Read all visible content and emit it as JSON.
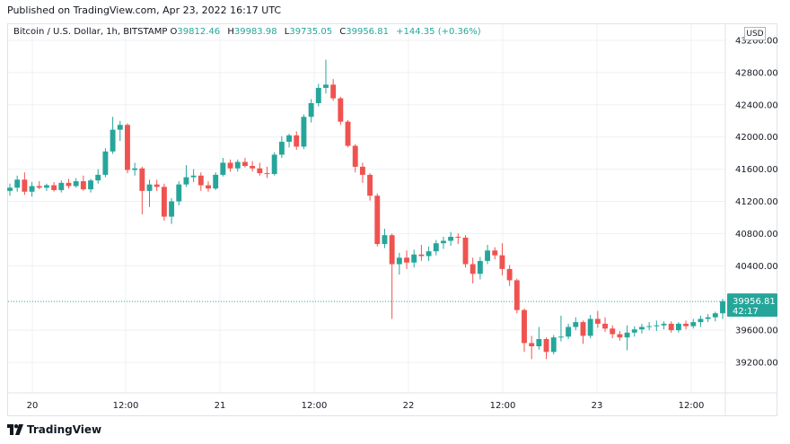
{
  "header": {
    "published": "Published on TradingView.com, Apr 23, 2022 16:17 UTC"
  },
  "legend": {
    "symbol": "Bitcoin / U.S. Dollar, 1h, BITSTAMP",
    "open_label": "O",
    "open": "39812.46",
    "high_label": "H",
    "high": "39983.98",
    "low_label": "L",
    "low": "39735.05",
    "close_label": "C",
    "close": "39956.81",
    "change": "+144.35 (+0.36%)"
  },
  "currency_button": "USD",
  "price_label": {
    "price": "39956.81",
    "countdown": "42:17"
  },
  "footer": {
    "logo_text": "TradingView"
  },
  "colors": {
    "up": "#26a69a",
    "down": "#ef5350",
    "grid": "#eef0f3",
    "axis_text": "#131722",
    "last_price_line": "#26a69a"
  },
  "chart_data": {
    "type": "candlestick",
    "timeframe": "1h",
    "x_ticks": [
      "20",
      "12:00",
      "21",
      "12:00",
      "22",
      "12:00",
      "23",
      "12:00"
    ],
    "y_ticks": [
      "43200.00",
      "42800.00",
      "42400.00",
      "42000.00",
      "41600.00",
      "41200.00",
      "40800.00",
      "40400.00",
      "39600.00",
      "39200.00"
    ],
    "ylim": [
      39000,
      43300
    ],
    "last_price": 39956.81,
    "candles": [
      {
        "o": 41330,
        "h": 41420,
        "l": 41270,
        "c": 41370
      },
      {
        "o": 41370,
        "h": 41520,
        "l": 41320,
        "c": 41470
      },
      {
        "o": 41470,
        "h": 41560,
        "l": 41280,
        "c": 41320
      },
      {
        "o": 41320,
        "h": 41440,
        "l": 41260,
        "c": 41390
      },
      {
        "o": 41390,
        "h": 41450,
        "l": 41350,
        "c": 41370
      },
      {
        "o": 41370,
        "h": 41420,
        "l": 41330,
        "c": 41400
      },
      {
        "o": 41400,
        "h": 41440,
        "l": 41320,
        "c": 41340
      },
      {
        "o": 41340,
        "h": 41460,
        "l": 41310,
        "c": 41430
      },
      {
        "o": 41430,
        "h": 41480,
        "l": 41360,
        "c": 41390
      },
      {
        "o": 41390,
        "h": 41490,
        "l": 41370,
        "c": 41450
      },
      {
        "o": 41450,
        "h": 41520,
        "l": 41330,
        "c": 41350
      },
      {
        "o": 41350,
        "h": 41480,
        "l": 41310,
        "c": 41460
      },
      {
        "o": 41460,
        "h": 41600,
        "l": 41420,
        "c": 41530
      },
      {
        "o": 41530,
        "h": 41860,
        "l": 41500,
        "c": 41820
      },
      {
        "o": 41820,
        "h": 42250,
        "l": 41790,
        "c": 42090
      },
      {
        "o": 42090,
        "h": 42200,
        "l": 41950,
        "c": 42150
      },
      {
        "o": 42150,
        "h": 42170,
        "l": 41550,
        "c": 41590
      },
      {
        "o": 41590,
        "h": 41680,
        "l": 41520,
        "c": 41610
      },
      {
        "o": 41610,
        "h": 41630,
        "l": 41040,
        "c": 41330
      },
      {
        "o": 41330,
        "h": 41470,
        "l": 41130,
        "c": 41410
      },
      {
        "o": 41410,
        "h": 41470,
        "l": 41330,
        "c": 41380
      },
      {
        "o": 41380,
        "h": 41420,
        "l": 40960,
        "c": 41010
      },
      {
        "o": 41010,
        "h": 41240,
        "l": 40920,
        "c": 41200
      },
      {
        "o": 41200,
        "h": 41450,
        "l": 41150,
        "c": 41410
      },
      {
        "o": 41410,
        "h": 41650,
        "l": 41380,
        "c": 41500
      },
      {
        "o": 41500,
        "h": 41600,
        "l": 41440,
        "c": 41520
      },
      {
        "o": 41520,
        "h": 41560,
        "l": 41330,
        "c": 41400
      },
      {
        "o": 41400,
        "h": 41450,
        "l": 41320,
        "c": 41360
      },
      {
        "o": 41360,
        "h": 41560,
        "l": 41340,
        "c": 41530
      },
      {
        "o": 41530,
        "h": 41740,
        "l": 41510,
        "c": 41680
      },
      {
        "o": 41680,
        "h": 41720,
        "l": 41570,
        "c": 41610
      },
      {
        "o": 41610,
        "h": 41720,
        "l": 41570,
        "c": 41690
      },
      {
        "o": 41690,
        "h": 41740,
        "l": 41620,
        "c": 41640
      },
      {
        "o": 41640,
        "h": 41700,
        "l": 41570,
        "c": 41610
      },
      {
        "o": 41610,
        "h": 41680,
        "l": 41520,
        "c": 41550
      },
      {
        "o": 41550,
        "h": 41630,
        "l": 41490,
        "c": 41540
      },
      {
        "o": 41540,
        "h": 41810,
        "l": 41520,
        "c": 41780
      },
      {
        "o": 41780,
        "h": 42010,
        "l": 41740,
        "c": 41940
      },
      {
        "o": 41940,
        "h": 42040,
        "l": 41870,
        "c": 42020
      },
      {
        "o": 42020,
        "h": 42070,
        "l": 41840,
        "c": 41880
      },
      {
        "o": 41880,
        "h": 42280,
        "l": 41850,
        "c": 42250
      },
      {
        "o": 42250,
        "h": 42470,
        "l": 42180,
        "c": 42420
      },
      {
        "o": 42420,
        "h": 42660,
        "l": 42380,
        "c": 42610
      },
      {
        "o": 42610,
        "h": 42960,
        "l": 42540,
        "c": 42650
      },
      {
        "o": 42650,
        "h": 42720,
        "l": 42450,
        "c": 42480
      },
      {
        "o": 42480,
        "h": 42500,
        "l": 42150,
        "c": 42190
      },
      {
        "o": 42190,
        "h": 42210,
        "l": 41870,
        "c": 41890
      },
      {
        "o": 41890,
        "h": 41910,
        "l": 41560,
        "c": 41630
      },
      {
        "o": 41630,
        "h": 41680,
        "l": 41430,
        "c": 41530
      },
      {
        "o": 41530,
        "h": 41550,
        "l": 41210,
        "c": 41270
      },
      {
        "o": 41270,
        "h": 41300,
        "l": 40640,
        "c": 40670
      },
      {
        "o": 40670,
        "h": 40860,
        "l": 40620,
        "c": 40780
      },
      {
        "o": 40780,
        "h": 40800,
        "l": 39740,
        "c": 40420
      },
      {
        "o": 40420,
        "h": 40560,
        "l": 40290,
        "c": 40500
      },
      {
        "o": 40500,
        "h": 40590,
        "l": 40360,
        "c": 40440
      },
      {
        "o": 40440,
        "h": 40600,
        "l": 40380,
        "c": 40540
      },
      {
        "o": 40540,
        "h": 40660,
        "l": 40460,
        "c": 40520
      },
      {
        "o": 40520,
        "h": 40640,
        "l": 40460,
        "c": 40580
      },
      {
        "o": 40580,
        "h": 40720,
        "l": 40530,
        "c": 40680
      },
      {
        "o": 40680,
        "h": 40760,
        "l": 40610,
        "c": 40710
      },
      {
        "o": 40710,
        "h": 40820,
        "l": 40650,
        "c": 40760
      },
      {
        "o": 40760,
        "h": 40800,
        "l": 40670,
        "c": 40750
      },
      {
        "o": 40750,
        "h": 40780,
        "l": 40380,
        "c": 40420
      },
      {
        "o": 40420,
        "h": 40500,
        "l": 40180,
        "c": 40300
      },
      {
        "o": 40300,
        "h": 40510,
        "l": 40230,
        "c": 40460
      },
      {
        "o": 40460,
        "h": 40660,
        "l": 40420,
        "c": 40590
      },
      {
        "o": 40590,
        "h": 40630,
        "l": 40480,
        "c": 40530
      },
      {
        "o": 40530,
        "h": 40680,
        "l": 40280,
        "c": 40360
      },
      {
        "o": 40360,
        "h": 40410,
        "l": 40150,
        "c": 40220
      },
      {
        "o": 40220,
        "h": 40240,
        "l": 39810,
        "c": 39850
      },
      {
        "o": 39850,
        "h": 39870,
        "l": 39330,
        "c": 39440
      },
      {
        "o": 39440,
        "h": 39530,
        "l": 39240,
        "c": 39400
      },
      {
        "o": 39400,
        "h": 39640,
        "l": 39360,
        "c": 39490
      },
      {
        "o": 39490,
        "h": 39510,
        "l": 39240,
        "c": 39330
      },
      {
        "o": 39330,
        "h": 39540,
        "l": 39300,
        "c": 39510
      },
      {
        "o": 39510,
        "h": 39780,
        "l": 39460,
        "c": 39520
      },
      {
        "o": 39520,
        "h": 39680,
        "l": 39490,
        "c": 39640
      },
      {
        "o": 39640,
        "h": 39760,
        "l": 39600,
        "c": 39700
      },
      {
        "o": 39700,
        "h": 39720,
        "l": 39430,
        "c": 39530
      },
      {
        "o": 39530,
        "h": 39790,
        "l": 39500,
        "c": 39740
      },
      {
        "o": 39740,
        "h": 39840,
        "l": 39630,
        "c": 39680
      },
      {
        "o": 39680,
        "h": 39760,
        "l": 39580,
        "c": 39620
      },
      {
        "o": 39620,
        "h": 39660,
        "l": 39500,
        "c": 39550
      },
      {
        "o": 39550,
        "h": 39590,
        "l": 39470,
        "c": 39510
      },
      {
        "o": 39510,
        "h": 39660,
        "l": 39350,
        "c": 39570
      },
      {
        "o": 39570,
        "h": 39650,
        "l": 39520,
        "c": 39610
      },
      {
        "o": 39610,
        "h": 39680,
        "l": 39560,
        "c": 39640
      },
      {
        "o": 39640,
        "h": 39700,
        "l": 39600,
        "c": 39650
      },
      {
        "o": 39650,
        "h": 39720,
        "l": 39590,
        "c": 39660
      },
      {
        "o": 39660,
        "h": 39710,
        "l": 39610,
        "c": 39680
      },
      {
        "o": 39680,
        "h": 39710,
        "l": 39570,
        "c": 39600
      },
      {
        "o": 39600,
        "h": 39700,
        "l": 39570,
        "c": 39680
      },
      {
        "o": 39680,
        "h": 39720,
        "l": 39610,
        "c": 39650
      },
      {
        "o": 39650,
        "h": 39740,
        "l": 39620,
        "c": 39700
      },
      {
        "o": 39700,
        "h": 39780,
        "l": 39640,
        "c": 39740
      },
      {
        "o": 39740,
        "h": 39800,
        "l": 39700,
        "c": 39760
      },
      {
        "o": 39760,
        "h": 39830,
        "l": 39710,
        "c": 39810
      },
      {
        "o": 39810,
        "h": 39990,
        "l": 39740,
        "c": 39960
      }
    ]
  }
}
